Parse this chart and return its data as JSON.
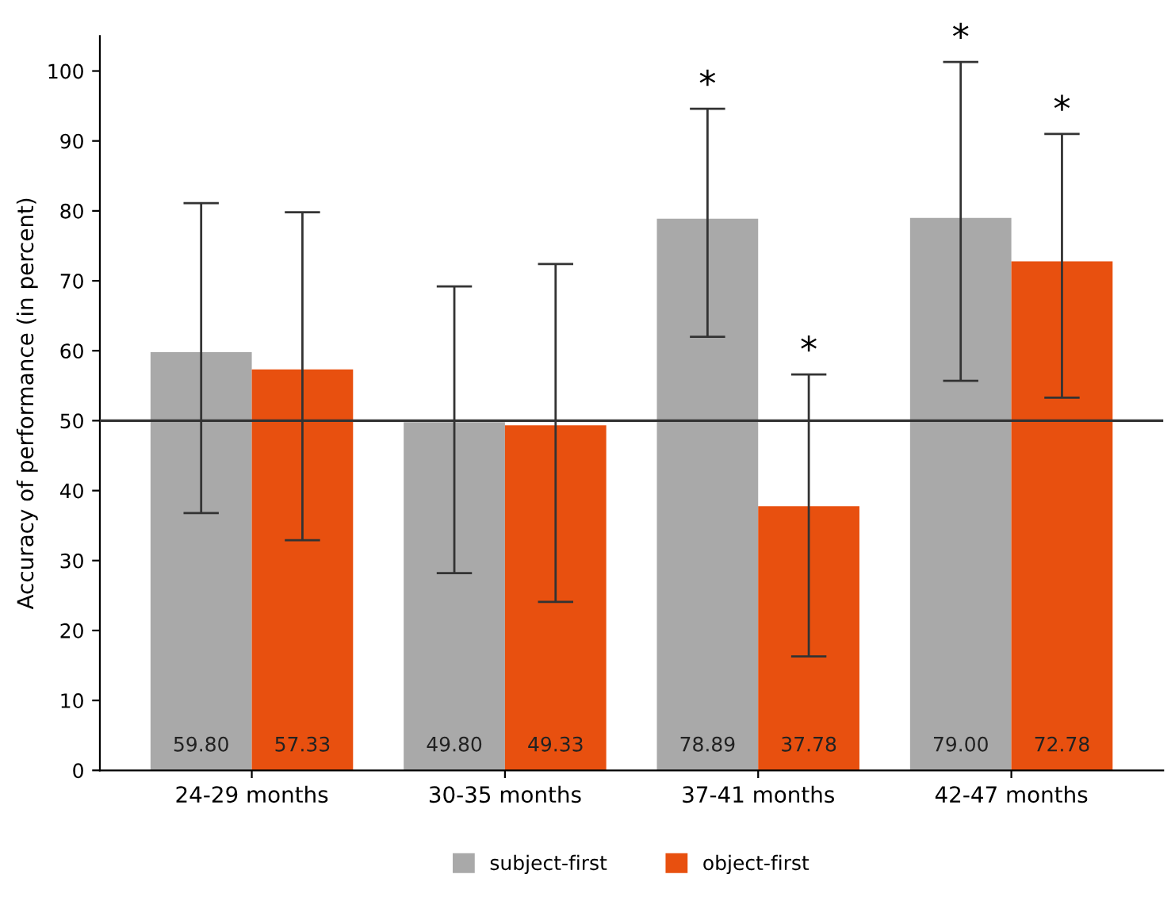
{
  "chart_data": {
    "type": "bar",
    "ylabel": "Accuracy of performance (in percent)",
    "categories": [
      "24-29 months",
      "30-35 months",
      "37-41 months",
      "42-47 months"
    ],
    "series": [
      {
        "name": "subject-first",
        "color": "#a9a9a9",
        "values": [
          59.8,
          49.8,
          78.89,
          79.0
        ],
        "value_labels": [
          "59.80",
          "49.80",
          "78.89",
          "79.00"
        ],
        "errors": [
          [
            36.8,
            81.1
          ],
          [
            28.2,
            69.2
          ],
          [
            62.0,
            94.6
          ],
          [
            55.7,
            101.3
          ]
        ]
      },
      {
        "name": "object-first",
        "color": "#e8500f",
        "values": [
          57.33,
          49.33,
          37.78,
          72.78
        ],
        "value_labels": [
          "57.33",
          "49.33",
          "37.78",
          "72.78"
        ],
        "errors": [
          [
            32.9,
            79.8
          ],
          [
            24.1,
            72.4
          ],
          [
            16.3,
            56.6
          ],
          [
            53.3,
            91.0
          ]
        ]
      }
    ],
    "ylim": [
      0,
      105
    ],
    "yticks": [
      0,
      10,
      20,
      30,
      40,
      50,
      60,
      70,
      80,
      90,
      100
    ],
    "ref_lines": [
      {
        "axis": "y",
        "value": 50,
        "color": "#333333"
      }
    ],
    "annotations": [
      "*",
      "*",
      "*",
      "*"
    ],
    "grid": false,
    "legend": "bottom"
  }
}
